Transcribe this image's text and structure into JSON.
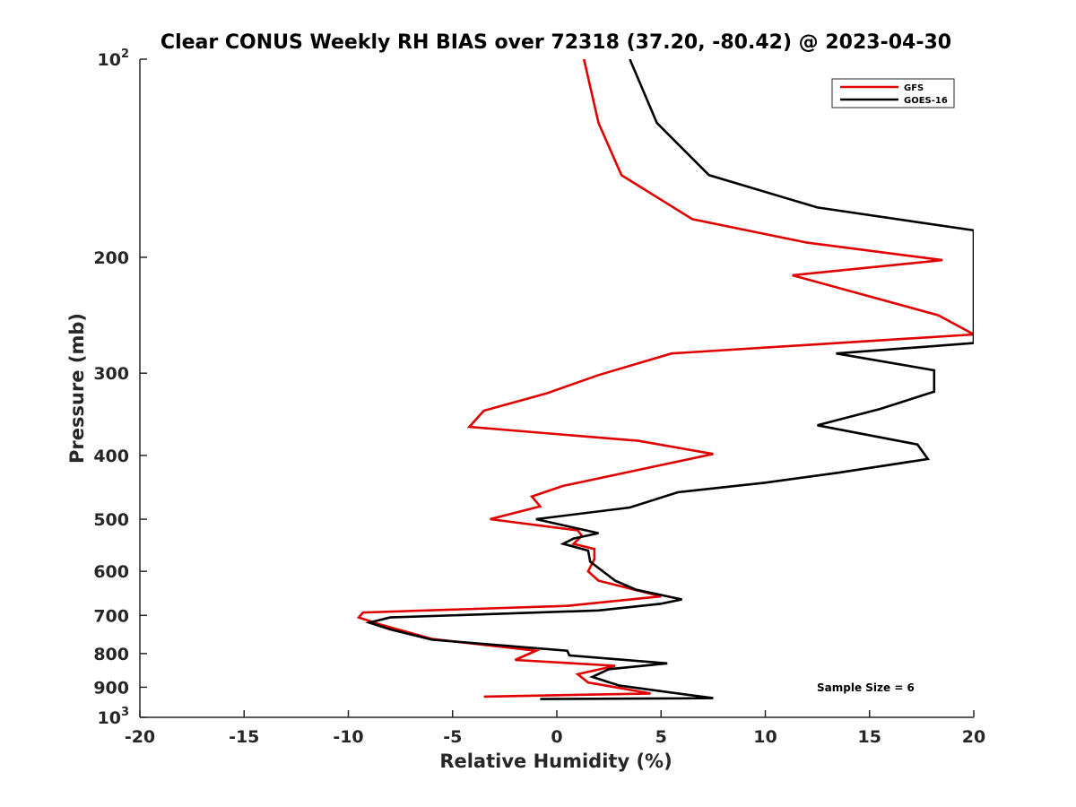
{
  "chart_data": {
    "type": "line",
    "title": "Clear CONUS Weekly RH BIAS over 72318 (37.20, -80.42) @ 2023-04-30",
    "xlabel": "Relative Humidity (%)",
    "ylabel": "Pressure (mb)",
    "xlim": [
      -20,
      20
    ],
    "ylim": [
      100,
      1000
    ],
    "y_scale": "log",
    "y_reversed": true,
    "xticks": [
      -20,
      -15,
      -10,
      -5,
      0,
      5,
      10,
      15,
      20
    ],
    "yticks": [
      {
        "value": 100,
        "base": "10",
        "exp": "2"
      },
      {
        "value": 200,
        "label": "200"
      },
      {
        "value": 300,
        "label": "300"
      },
      {
        "value": 400,
        "label": "400"
      },
      {
        "value": 500,
        "label": "500"
      },
      {
        "value": 600,
        "label": "600"
      },
      {
        "value": 700,
        "label": "700"
      },
      {
        "value": 800,
        "label": "800"
      },
      {
        "value": 900,
        "label": "900"
      },
      {
        "value": 1000,
        "base": "10",
        "exp": "3"
      }
    ],
    "grid": false,
    "legend_position": "top-right",
    "annotation": "Sample Size = 6",
    "series": [
      {
        "name": "GFS",
        "color": "#e00000",
        "points": [
          [
            1.3,
            100
          ],
          [
            2.0,
            125
          ],
          [
            3.1,
            150
          ],
          [
            6.5,
            175
          ],
          [
            12.0,
            190
          ],
          [
            18.5,
            202
          ],
          [
            11.3,
            213
          ],
          [
            18.3,
            245
          ],
          [
            20.0,
            262
          ],
          [
            5.5,
            280
          ],
          [
            2.0,
            302
          ],
          [
            -0.5,
            322
          ],
          [
            -3.5,
            342
          ],
          [
            -4.2,
            362
          ],
          [
            3.9,
            380
          ],
          [
            7.5,
            398
          ],
          [
            0.3,
            445
          ],
          [
            -1.2,
            462
          ],
          [
            -0.8,
            478
          ],
          [
            -3.2,
            500
          ],
          [
            1.0,
            520
          ],
          [
            1.2,
            530
          ],
          [
            0.8,
            545
          ],
          [
            1.8,
            555
          ],
          [
            1.8,
            575
          ],
          [
            1.5,
            600
          ],
          [
            2.0,
            620
          ],
          [
            5.0,
            655
          ],
          [
            0.5,
            677
          ],
          [
            -9.3,
            693
          ],
          [
            -9.5,
            705
          ],
          [
            -8.5,
            722
          ],
          [
            -6.0,
            760
          ],
          [
            -1.0,
            792
          ],
          [
            -2.0,
            818
          ],
          [
            2.8,
            835
          ],
          [
            1.0,
            860
          ],
          [
            1.5,
            885
          ],
          [
            4.5,
            920
          ],
          [
            -3.5,
            930
          ]
        ]
      },
      {
        "name": "GOES-16",
        "color": "#000000",
        "points": [
          [
            3.5,
            100
          ],
          [
            4.8,
            125
          ],
          [
            7.3,
            150
          ],
          [
            12.5,
            168
          ],
          [
            20.0,
            182
          ],
          [
            20.0,
            270
          ],
          [
            13.4,
            280
          ],
          [
            18.1,
            297
          ],
          [
            18.1,
            320
          ],
          [
            15.5,
            340
          ],
          [
            12.5,
            360
          ],
          [
            17.3,
            385
          ],
          [
            17.8,
            405
          ],
          [
            13.5,
            425
          ],
          [
            10.0,
            440
          ],
          [
            5.8,
            455
          ],
          [
            3.5,
            480
          ],
          [
            -1.0,
            500
          ],
          [
            2.0,
            525
          ],
          [
            0.8,
            535
          ],
          [
            0.3,
            545
          ],
          [
            1.5,
            558
          ],
          [
            1.6,
            580
          ],
          [
            2.8,
            620
          ],
          [
            3.8,
            640
          ],
          [
            6.0,
            662
          ],
          [
            5.0,
            672
          ],
          [
            2.0,
            688
          ],
          [
            -8.0,
            705
          ],
          [
            -9.0,
            718
          ],
          [
            -8.0,
            735
          ],
          [
            -6.0,
            762
          ],
          [
            0.5,
            792
          ],
          [
            0.6,
            805
          ],
          [
            5.3,
            828
          ],
          [
            2.5,
            845
          ],
          [
            1.7,
            868
          ],
          [
            3.0,
            895
          ],
          [
            7.5,
            935
          ],
          [
            -0.8,
            938
          ]
        ]
      }
    ]
  }
}
